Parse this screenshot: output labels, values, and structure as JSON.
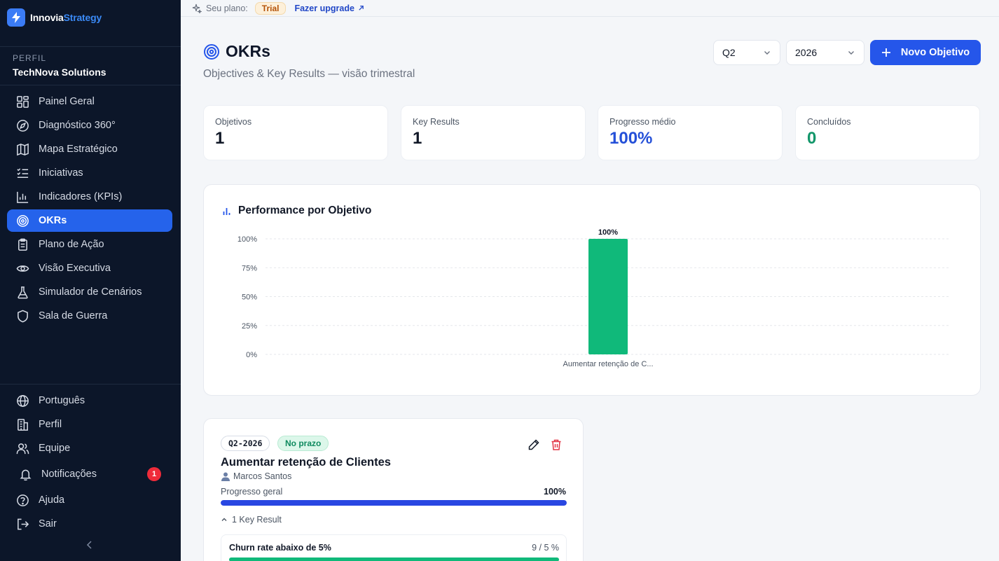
{
  "app": {
    "brand_first": "Innovia",
    "brand_second": "Strategy"
  },
  "profile": {
    "label": "PERFIL",
    "name": "TechNova Solutions"
  },
  "nav": {
    "items": [
      {
        "label": "Painel Geral",
        "icon": "grid-icon"
      },
      {
        "label": "Diagnóstico 360°",
        "icon": "compass-icon"
      },
      {
        "label": "Mapa Estratégico",
        "icon": "map-icon"
      },
      {
        "label": "Iniciativas",
        "icon": "list-check-icon"
      },
      {
        "label": "Indicadores (KPIs)",
        "icon": "bar-chart-icon"
      },
      {
        "label": "OKRs",
        "icon": "target-icon",
        "active": true
      },
      {
        "label": "Plano de Ação",
        "icon": "clipboard-icon"
      },
      {
        "label": "Visão Executiva",
        "icon": "eye-icon"
      },
      {
        "label": "Simulador de Cenários",
        "icon": "flask-icon"
      },
      {
        "label": "Sala de Guerra",
        "icon": "shield-icon"
      }
    ],
    "bottom": [
      {
        "label": "Português",
        "icon": "globe-icon"
      },
      {
        "label": "Perfil",
        "icon": "building-icon"
      },
      {
        "label": "Equipe",
        "icon": "users-icon"
      },
      {
        "label": "Notificações",
        "icon": "bell-icon",
        "badge": "1"
      },
      {
        "label": "Ajuda",
        "icon": "help-icon"
      },
      {
        "label": "Sair",
        "icon": "logout-icon"
      }
    ]
  },
  "topbar": {
    "plan_label": "Seu plano:",
    "plan_badge": "Trial",
    "upgrade_label": "Fazer upgrade"
  },
  "header": {
    "title": "OKRs",
    "subtitle": "Objectives & Key Results — visão trimestral",
    "quarter": "Q2",
    "year": "2026",
    "new_button": "Novo Objetivo"
  },
  "stats": [
    {
      "label": "Objetivos",
      "value": "1"
    },
    {
      "label": "Key Results",
      "value": "1"
    },
    {
      "label": "Progresso médio",
      "value": "100%"
    },
    {
      "label": "Concluídos",
      "value": "0"
    }
  ],
  "chart_data": {
    "type": "bar",
    "title": "Performance por Objetivo",
    "categories": [
      "Aumentar retenção de C..."
    ],
    "values": [
      100
    ],
    "value_labels": [
      "100%"
    ],
    "yticks": [
      "0%",
      "25%",
      "50%",
      "75%",
      "100%"
    ],
    "ylim": [
      0,
      100
    ],
    "grid": true,
    "bar_color": "#10b97a"
  },
  "objective": {
    "period": "Q2-2026",
    "status": "No prazo",
    "title": "Aumentar retenção de Clientes",
    "owner": "Marcos Santos",
    "progress_label": "Progresso geral",
    "progress_value": "100%",
    "progress": 100,
    "kr_toggle": "1 Key Result",
    "key_results": [
      {
        "name": "Churn rate abaixo de 5%",
        "value": "9 / 5 %",
        "progress": 100
      }
    ]
  }
}
